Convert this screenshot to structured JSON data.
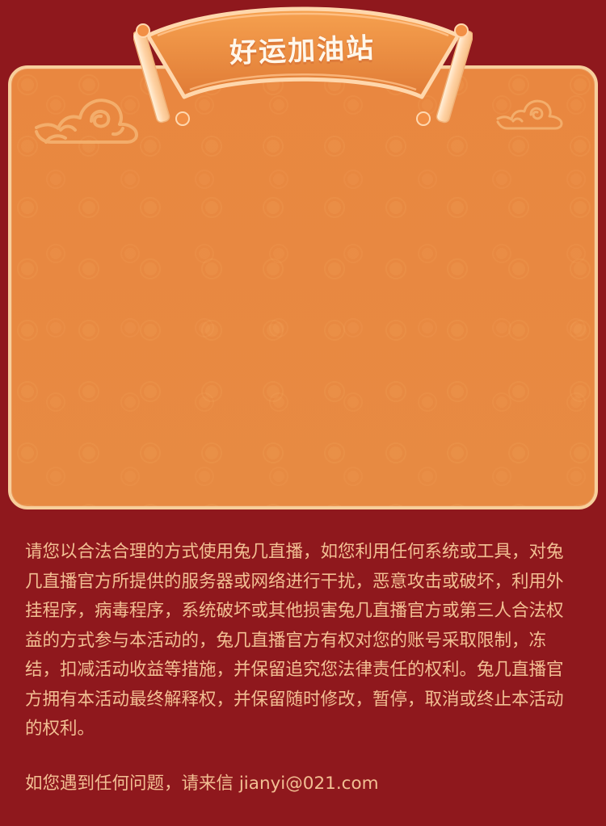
{
  "banner": {
    "title": "好运加油站"
  },
  "notice": {
    "text": "请您以合法合理的方式使用兔几直播，如您利用任何系统或工具，对兔几直播官方所提供的服务器或网络进行干扰，恶意攻击或破坏，利用外挂程序，病毒程序，系统破坏或其他损害兔几直播官方或第三人合法权益的方式参与本活动的，兔几直播官方有权对您的账号采取限制，冻结，扣减活动收益等措施，并保留追究您法律责任的权利。兔几直播官方拥有本活动最终解释权，并保留随时修改，暂停，取消或终止本活动的权利。"
  },
  "contact": {
    "text": "如您遇到任何问题，请来信 jianyi@021.com"
  },
  "colors": {
    "page_background": "#8f181d",
    "panel_fill": "#e98a43",
    "panel_border": "#f7cf9c",
    "text": "#f2bf93"
  },
  "icons": {
    "left_decoration": "cloud-icon",
    "right_decoration": "cloud-icon"
  }
}
